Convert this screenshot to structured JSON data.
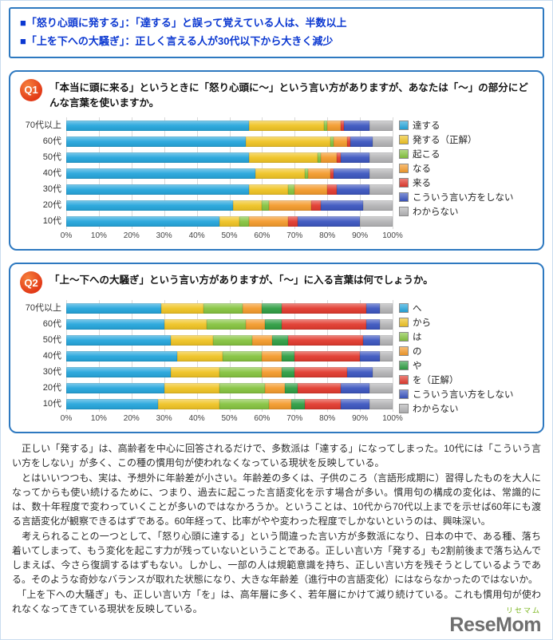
{
  "colors": {
    "panel_border": "#2e79c0",
    "header_text": "#0b38d1",
    "badge_red": "#e23a17",
    "gridline": "#d9d9d9",
    "logo_gray": "#6f6f6f",
    "logo_green": "#7ab51d"
  },
  "header": {
    "bullets": [
      "■「怒り心頭に発する」：「達する」と誤って覚えている人は、半数以上",
      "■「上を下への大騒ぎ」：正しく言える人が30代以下から大きく減少"
    ]
  },
  "q1": {
    "badge": "Q1",
    "title": "「本当に頭に来る」というときに「怒り心頭に〜」という言い方がありますが、あなたは「〜」の部分にどんな言葉を使いますか。"
  },
  "q2": {
    "badge": "Q2",
    "title": "「上〜下への大騒ぎ」という言い方がありますが、「〜」に入る言葉は何でしょうか。"
  },
  "chart_data": [
    {
      "type": "bar",
      "stacked": true,
      "orientation": "horizontal",
      "title": "怒り心頭に〜",
      "categories": [
        "70代以上",
        "60代",
        "50代",
        "40代",
        "30代",
        "20代",
        "10代"
      ],
      "x_ticks": [
        "0%",
        "10%",
        "20%",
        "30%",
        "40%",
        "50%",
        "60%",
        "70%",
        "80%",
        "90%",
        "100%"
      ],
      "xlim": [
        0,
        100
      ],
      "grid": true,
      "legend_position": "right",
      "series": [
        {
          "name": "達する",
          "color": "#25a6dc",
          "values": [
            56,
            55,
            56,
            58,
            56,
            51,
            47
          ]
        },
        {
          "name": "発する（正解）",
          "color": "#f0c424",
          "values": [
            23,
            26,
            21,
            15,
            12,
            9,
            6
          ]
        },
        {
          "name": "起こる",
          "color": "#86c440",
          "values": [
            1,
            1,
            1,
            1,
            2,
            2,
            3
          ]
        },
        {
          "name": "なる",
          "color": "#f49b2c",
          "values": [
            4,
            4,
            5,
            7,
            10,
            13,
            12
          ]
        },
        {
          "name": "来る",
          "color": "#e23a2e",
          "values": [
            1,
            1,
            1,
            1,
            3,
            3,
            3
          ]
        },
        {
          "name": "こういう言い方をしない",
          "color": "#3c56c0",
          "values": [
            8,
            7,
            9,
            11,
            10,
            13,
            19
          ]
        },
        {
          "name": "わからない",
          "color": "#b4b4b6",
          "values": [
            7,
            6,
            7,
            7,
            7,
            9,
            10
          ]
        }
      ]
    },
    {
      "type": "bar",
      "stacked": true,
      "orientation": "horizontal",
      "title": "上〜下への大騒ぎ",
      "categories": [
        "70代以上",
        "60代",
        "50代",
        "40代",
        "30代",
        "20代",
        "10代"
      ],
      "x_ticks": [
        "0%",
        "10%",
        "20%",
        "30%",
        "40%",
        "50%",
        "60%",
        "70%",
        "80%",
        "90%",
        "100%"
      ],
      "xlim": [
        0,
        100
      ],
      "grid": true,
      "legend_position": "right",
      "series": [
        {
          "name": "へ",
          "color": "#25a6dc",
          "values": [
            29,
            30,
            32,
            34,
            32,
            30,
            28
          ]
        },
        {
          "name": "から",
          "color": "#f0c424",
          "values": [
            13,
            13,
            13,
            14,
            15,
            17,
            19
          ]
        },
        {
          "name": "は",
          "color": "#86c440",
          "values": [
            12,
            12,
            12,
            12,
            13,
            14,
            15
          ]
        },
        {
          "name": "の",
          "color": "#f49b2c",
          "values": [
            6,
            6,
            6,
            6,
            6,
            6,
            7
          ]
        },
        {
          "name": "や",
          "color": "#2f9e44",
          "values": [
            6,
            5,
            5,
            4,
            4,
            4,
            4
          ]
        },
        {
          "name": "を（正解）",
          "color": "#e23a2e",
          "values": [
            26,
            26,
            23,
            20,
            16,
            13,
            11
          ]
        },
        {
          "name": "こういう言い方をしない",
          "color": "#3c56c0",
          "values": [
            4,
            4,
            5,
            6,
            8,
            9,
            9
          ]
        },
        {
          "name": "わからない",
          "color": "#b4b4b6",
          "values": [
            4,
            4,
            4,
            4,
            6,
            7,
            7
          ]
        }
      ]
    }
  ],
  "body_paragraphs": [
    "　正しい「発する」は、高齢者を中心に回答されるだけで、多数派は「達する」になってしまった。10代には「こういう言い方をしない」が多く、この種の慣用句が使われなくなっている現状を反映している。",
    "　とはいいつつも、実は、予想外に年齢差が小さい。年齢差の多くは、子供のころ（言語形成期に）習得したものを大人になってからも使い続けるために、つまり、過去に起こった言語変化を示す場合が多い。慣用句の構成の変化は、常識的には、数十年程度で変わっていくことが多いのではなかろうか。ということは、10代から70代以上までを示せば60年にも渡る言語変化が観察できるはずである。60年経って、比率がやや変わった程度でしかないというのは、興味深い。",
    "　考えられることの一つとして、「怒り心頭に達する」という間違った言い方が多数派になり、日本の中で、ある種、落ち着いてしまって、もう変化を起こす力が残っていないということである。正しい言い方「発する」も2割前後まで落ち込んでしまえば、今さら復調するはずもない。しかし、一部の人は規範意識を持ち、正しい言い方を残そうとしているようである。そのような奇妙なバランスが取れた状態になり、大きな年齢差（進行中の言語変化）にはならなかったのではないか。",
    "　「上を下への大騒ぎ」も、正しい言い方「を」は、高年層に多く、若年層にかけて減り続けている。これも慣用句が使われなくなってきている現状を反映している。"
  ],
  "footer": {
    "logo_kana": "リセマム",
    "logo_text": "ReseMom"
  }
}
